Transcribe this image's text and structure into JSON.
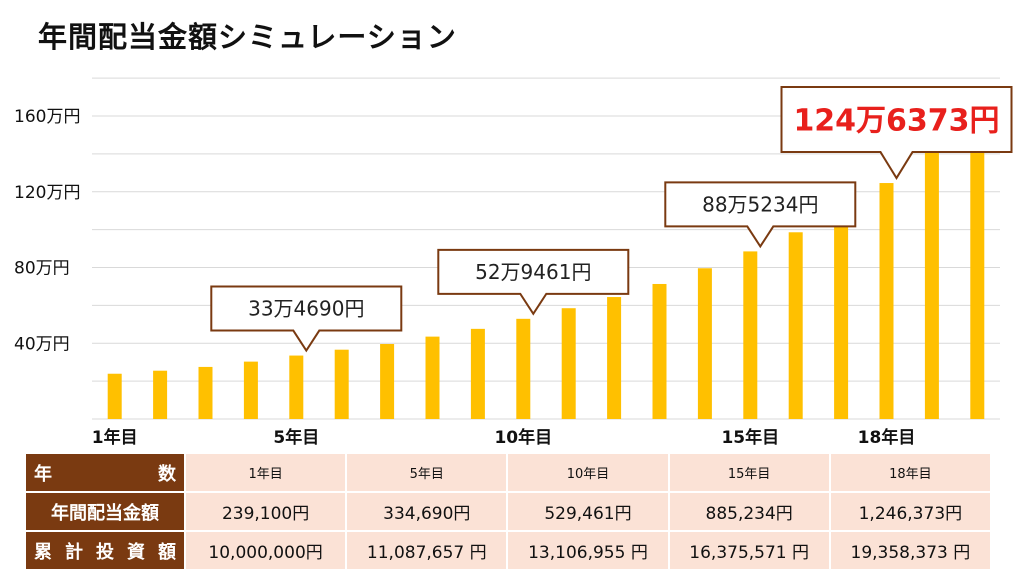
{
  "title": "年間配当金額シミュレーション",
  "colors": {
    "bar": "#ffc000",
    "callout_border": "#7a3a11",
    "table_header": "#7a3a11",
    "table_cell": "#fbe2d6",
    "highlight": "#e8201c"
  },
  "chart_data": {
    "type": "bar",
    "title": "年間配当金額シミュレーション",
    "unit": "万円",
    "ylim": [
      0,
      160
    ],
    "yticks": [
      40,
      80,
      120,
      160
    ],
    "ytick_labels": [
      "40万円",
      "80万円",
      "120万円",
      "160万円"
    ],
    "grid": true,
    "x": [
      1,
      2,
      3,
      4,
      5,
      6,
      7,
      8,
      9,
      10,
      11,
      12,
      13,
      14,
      15,
      16,
      17,
      18,
      19,
      20
    ],
    "xtick_labels": [
      {
        "x": 1,
        "label": "1年目"
      },
      {
        "x": 5,
        "label": "5年目"
      },
      {
        "x": 10,
        "label": "10年目"
      },
      {
        "x": 15,
        "label": "15年目"
      },
      {
        "x": 18,
        "label": "18年目"
      }
    ],
    "values": [
      23.9,
      25.5,
      27.5,
      30.3,
      33.5,
      36.6,
      39.6,
      43.5,
      47.6,
      52.9,
      58.5,
      64.4,
      71.3,
      79.6,
      88.5,
      98.6,
      110.5,
      124.6,
      140.5,
      158.8
    ],
    "annotations": [
      {
        "x": 5,
        "label": "33万4690円",
        "emphasis": false
      },
      {
        "x": 10,
        "label": "52万9461円",
        "emphasis": false
      },
      {
        "x": 15,
        "label": "88万5234円",
        "emphasis": false
      },
      {
        "x": 18,
        "label": "124万6373円",
        "emphasis": true
      }
    ]
  },
  "table": {
    "rows": [
      {
        "header": "年　　数",
        "cells": [
          "1年目",
          "5年目",
          "10年目",
          "15年目",
          "18年目"
        ]
      },
      {
        "header": "年間配当金額",
        "cells": [
          "239,100円",
          "334,690円",
          "529,461円",
          "885,234円",
          "1,246,373円"
        ]
      },
      {
        "header": "累計投資額",
        "cells": [
          "10,000,000円",
          "11,087,657 円",
          "13,106,955 円",
          "16,375,571 円",
          "19,358,373 円"
        ]
      }
    ]
  }
}
